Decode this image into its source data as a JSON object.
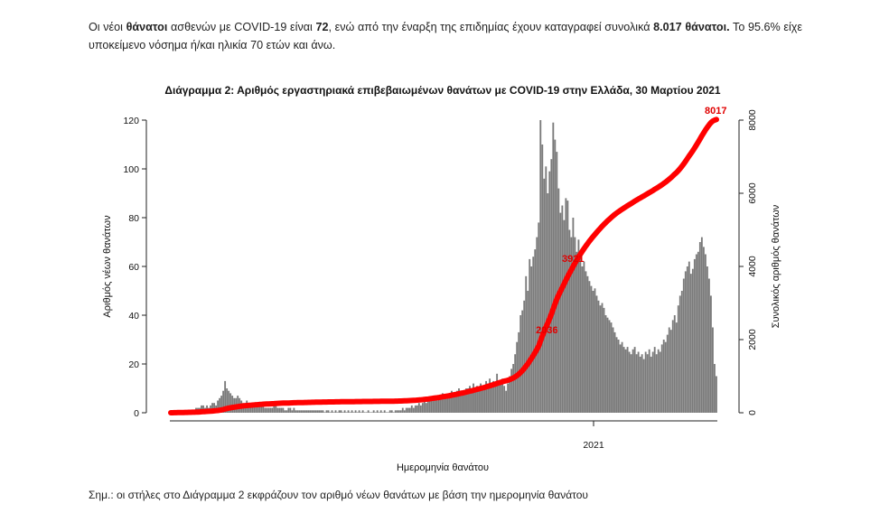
{
  "text": {
    "p1_a": "Οι νέοι ",
    "p1_b": "θάνατοι",
    "p1_c": " ασθενών με COVID-19 είναι ",
    "p1_d": "72",
    "p1_e": ", ενώ από την έναρξη της επιδημίας έχουν καταγραφεί συνολικά ",
    "p1_f": "8.017 θάνατοι.",
    "p1_g": " Το 95.6% είχε υποκείμενο νόσημα ή/και ηλικία 70 ετών και άνω.",
    "note": "Σημ.: οι στήλες στο Διάγραμμα 2 εκφράζουν τον αριθμό νέων θανάτων με βάση την ημερομηνία θανάτου"
  },
  "chart_data": {
    "type": "bar",
    "title": "Διάγραμμα 2: Αριθμός εργαστηριακά επιβεβαιωμένων θανάτων με COVID-19 στην Ελλάδα, 30 Μαρτίου 2021",
    "xlabel": "Ημερομηνία θανάτου",
    "ylabel_left": "Αριθμός νέων θανάτων",
    "ylabel_right": "Συνολικός αριθμός θανάτων",
    "x_tick": "2021",
    "ylim_left": [
      0,
      120
    ],
    "ylim_right": [
      0,
      8000
    ],
    "yticks_left": [
      "0",
      "20",
      "40",
      "60",
      "80",
      "100",
      "120"
    ],
    "yticks_right": [
      "0",
      "2000",
      "4000",
      "6000",
      "8000"
    ],
    "bar_color": "#7a7a7a",
    "line_color": "#ff0000",
    "daily_deaths_approx": [
      0,
      1,
      1,
      1,
      1,
      1,
      1,
      1,
      1,
      1,
      1,
      1,
      1,
      1,
      2,
      2,
      2,
      3,
      3,
      2,
      3,
      2,
      3,
      4,
      4,
      3,
      5,
      6,
      7,
      9,
      13,
      10,
      9,
      8,
      7,
      6,
      6,
      7,
      6,
      5,
      4,
      4,
      5,
      4,
      3,
      3,
      4,
      4,
      3,
      3,
      3,
      3,
      2,
      2,
      2,
      2,
      2,
      3,
      3,
      2,
      2,
      2,
      2,
      1,
      1,
      2,
      2,
      1,
      2,
      1,
      1,
      1,
      1,
      1,
      1,
      1,
      1,
      1,
      1,
      1,
      1,
      1,
      1,
      1,
      1,
      0,
      1,
      1,
      0,
      1,
      0,
      1,
      0,
      1,
      1,
      0,
      1,
      0,
      1,
      0,
      1,
      0,
      1,
      0,
      1,
      0,
      1,
      0,
      0,
      1,
      0,
      0,
      1,
      0,
      1,
      0,
      1,
      0,
      1,
      0,
      0,
      1,
      1,
      0,
      1,
      1,
      1,
      1,
      2,
      1,
      2,
      2,
      2,
      3,
      2,
      3,
      3,
      4,
      3,
      4,
      5,
      4,
      5,
      6,
      5,
      6,
      7,
      5,
      6,
      7,
      8,
      6,
      7,
      6,
      8,
      9,
      8,
      7,
      9,
      10,
      9,
      8,
      9,
      10,
      10,
      11,
      9,
      12,
      10,
      11,
      9,
      12,
      11,
      10,
      13,
      12,
      14,
      11,
      13,
      12,
      16,
      13,
      12,
      14,
      11,
      9,
      12,
      15,
      18,
      20,
      24,
      29,
      33,
      40,
      42,
      46,
      56,
      50,
      63,
      60,
      64,
      67,
      72,
      78,
      120,
      110,
      96,
      101,
      90,
      99,
      104,
      119,
      112,
      107,
      92,
      82,
      85,
      79,
      88,
      87,
      75,
      72,
      80,
      72,
      66,
      71,
      65,
      60,
      62,
      58,
      56,
      54,
      52,
      50,
      51,
      48,
      46,
      44,
      45,
      43,
      40,
      39,
      38,
      37,
      35,
      33,
      31,
      30,
      28,
      29,
      27,
      26,
      27,
      25,
      24,
      26,
      27,
      24,
      25,
      23,
      24,
      22,
      25,
      24,
      26,
      23,
      25,
      27,
      24,
      26,
      25,
      28,
      30,
      29,
      32,
      35,
      34,
      38,
      40,
      37,
      44,
      48,
      50,
      55,
      58,
      60,
      62,
      57,
      59,
      63,
      65,
      66,
      70,
      72,
      68,
      65,
      60,
      55,
      48,
      35,
      20,
      15
    ],
    "cumulative_labels": [
      "2036",
      "3921",
      "8017"
    ],
    "cumulative_end": 8017
  }
}
